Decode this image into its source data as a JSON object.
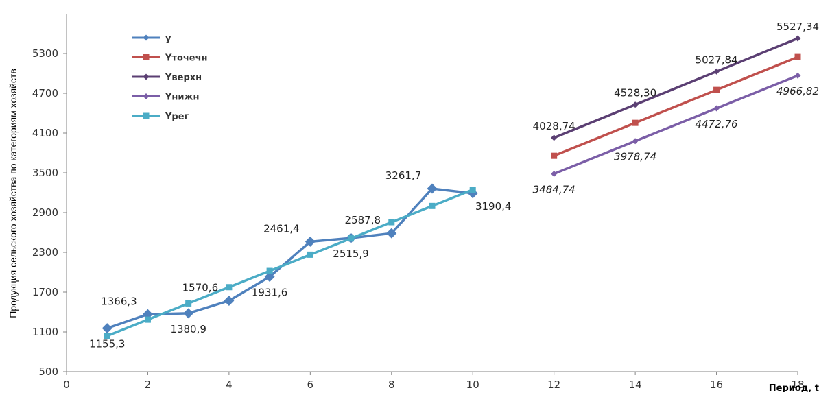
{
  "chart_data": {
    "type": "line",
    "xlabel": "Период, t",
    "ylabel": "Продукция сельского хозяйства по категориям хозяйств",
    "xlim": [
      0,
      18
    ],
    "ylim": [
      500,
      5900
    ],
    "x_ticks": [
      0,
      2,
      4,
      6,
      8,
      10,
      12,
      14,
      16,
      18
    ],
    "y_ticks": [
      500,
      1100,
      1700,
      2300,
      2900,
      3500,
      4100,
      4700,
      5300
    ],
    "grid": false,
    "legend_position": "top-left",
    "series": [
      {
        "name": "y",
        "color": "#4f81bd",
        "marker": "diamond",
        "x": [
          1,
          2,
          3,
          4,
          5,
          6,
          7,
          8,
          9,
          10
        ],
        "y": [
          1155.3,
          1366.3,
          1380.9,
          1570.6,
          1931.6,
          2461.4,
          2515.9,
          2587.8,
          3261.7,
          3190.4
        ]
      },
      {
        "name": "Yточечн",
        "color": "#c0504d",
        "marker": "square",
        "x": [
          12,
          14,
          16,
          18
        ],
        "y": [
          3756.74,
          4253.52,
          4750.3,
          5247.08
        ]
      },
      {
        "name": "Yверхн",
        "color": "#5b3f73",
        "marker": "diamond",
        "x": [
          12,
          14,
          16,
          18
        ],
        "y": [
          4028.74,
          4528.3,
          5027.84,
          5527.34
        ]
      },
      {
        "name": "Yнижн",
        "color": "#7b5ea7",
        "marker": "diamond",
        "x": [
          12,
          14,
          16,
          18
        ],
        "y": [
          3484.74,
          3978.74,
          4472.76,
          4966.82
        ]
      },
      {
        "name": "Yрег",
        "color": "#4bacc6",
        "marker": "square",
        "x": [
          1,
          2,
          3,
          4,
          5,
          6,
          7,
          8,
          9,
          10
        ],
        "y": [
          1040,
          1285,
          1530,
          1775,
          2020,
          2265,
          2510,
          2755,
          3000,
          3245
        ]
      }
    ],
    "annotations": [
      {
        "text": "1155,3",
        "x": 1,
        "y": 1155.3,
        "pos": "below",
        "italic": false
      },
      {
        "text": "1366,3",
        "x": 2,
        "y": 1366.3,
        "pos": "above-left",
        "italic": false
      },
      {
        "text": "1380,9",
        "x": 3,
        "y": 1380.9,
        "pos": "below",
        "italic": false
      },
      {
        "text": "1570,6",
        "x": 4,
        "y": 1570.6,
        "pos": "above-left",
        "italic": false
      },
      {
        "text": "1931,6",
        "x": 5,
        "y": 1931.6,
        "pos": "below",
        "italic": false
      },
      {
        "text": "2461,4",
        "x": 6,
        "y": 2461.4,
        "pos": "above-left",
        "italic": false
      },
      {
        "text": "2515,9",
        "x": 7,
        "y": 2515.9,
        "pos": "below",
        "italic": false
      },
      {
        "text": "2587,8",
        "x": 8,
        "y": 2587.8,
        "pos": "above-left",
        "italic": false
      },
      {
        "text": "3261,7",
        "x": 9,
        "y": 3261.7,
        "pos": "above-left",
        "italic": false
      },
      {
        "text": "3190,4",
        "x": 10,
        "y": 3190.4,
        "pos": "below-right",
        "italic": false
      },
      {
        "text": "4028,74",
        "x": 12,
        "y": 4028.74,
        "pos": "above",
        "italic": false
      },
      {
        "text": "4528,30",
        "x": 14,
        "y": 4528.3,
        "pos": "above",
        "italic": false
      },
      {
        "text": "5027,84",
        "x": 16,
        "y": 5027.84,
        "pos": "above",
        "italic": false
      },
      {
        "text": "5527,34",
        "x": 18,
        "y": 5527.34,
        "pos": "above",
        "italic": false
      },
      {
        "text": "3484,74",
        "x": 12,
        "y": 3484.74,
        "pos": "below",
        "italic": true
      },
      {
        "text": "3978,74",
        "x": 14,
        "y": 3978.74,
        "pos": "below",
        "italic": true
      },
      {
        "text": "4472,76",
        "x": 16,
        "y": 4472.76,
        "pos": "below",
        "italic": true
      },
      {
        "text": "4966,82",
        "x": 18,
        "y": 4966.82,
        "pos": "below",
        "italic": true
      }
    ]
  }
}
